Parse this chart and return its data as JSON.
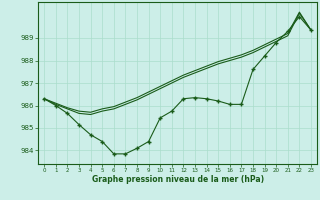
{
  "xlabel": "Graphe pression niveau de la mer (hPa)",
  "bg_color": "#cceee8",
  "grid_color": "#aaddcc",
  "line_color": "#1a5c1a",
  "xlim": [
    -0.5,
    23.5
  ],
  "ylim": [
    983.4,
    990.6
  ],
  "yticks": [
    984,
    985,
    986,
    987,
    988,
    989
  ],
  "xticks": [
    0,
    1,
    2,
    3,
    4,
    5,
    6,
    7,
    8,
    9,
    10,
    11,
    12,
    13,
    14,
    15,
    16,
    17,
    18,
    19,
    20,
    21,
    22,
    23
  ],
  "series1": [
    986.3,
    986.0,
    985.65,
    985.15,
    984.7,
    984.4,
    983.85,
    983.85,
    984.1,
    984.4,
    985.45,
    985.75,
    986.3,
    986.35,
    986.3,
    986.2,
    986.05,
    986.05,
    987.6,
    988.2,
    988.8,
    989.3,
    989.95,
    989.35
  ],
  "series2": [
    986.3,
    986.1,
    985.9,
    985.75,
    985.7,
    985.85,
    985.95,
    986.15,
    986.35,
    986.6,
    986.85,
    987.1,
    987.35,
    987.55,
    987.75,
    987.95,
    988.1,
    988.25,
    988.45,
    988.7,
    988.95,
    989.2,
    990.15,
    989.35
  ],
  "series3": [
    986.3,
    986.05,
    985.85,
    985.65,
    985.6,
    985.75,
    985.85,
    986.05,
    986.25,
    986.5,
    986.75,
    987.0,
    987.25,
    987.45,
    987.65,
    987.85,
    988.0,
    988.15,
    988.35,
    988.6,
    988.85,
    989.1,
    990.1,
    989.35
  ]
}
